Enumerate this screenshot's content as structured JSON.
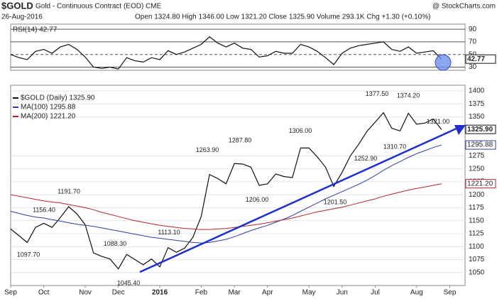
{
  "header": {
    "symbol": "$GOLD",
    "name": "Gold - Continuous Contract (EOD) CME",
    "credit": "@ StockCharts.com",
    "date": "26-Aug-2016",
    "quote": "Open 1324.80 High 1346.00 Low 1321.20 Close 1325.90 Volume 293.1K Chg +1.30 (+0.10%)"
  },
  "chart_data": [
    {
      "type": "line",
      "categories": [
        "Sep",
        null,
        null,
        null,
        "Oct",
        null,
        null,
        null,
        null,
        "Nov",
        null,
        null,
        null,
        "Dec",
        null,
        null,
        null,
        null,
        "2016",
        null,
        null,
        null,
        null,
        "Feb",
        null,
        null,
        null,
        "Mar",
        null,
        null,
        null,
        "Apr",
        null,
        null,
        null,
        null,
        "May",
        null,
        null,
        null,
        "Jun",
        null,
        null,
        null,
        "Jul",
        null,
        null,
        null,
        null,
        "Aug",
        null,
        null,
        null,
        "Sep"
      ],
      "ylim": [
        25,
        98
      ],
      "yticks": [
        90,
        70,
        50,
        30
      ],
      "series": [
        {
          "name": "RSI(14) 42.77",
          "color": "#111",
          "last_label": "42.77",
          "values": [
            50,
            45,
            42,
            55,
            58,
            52,
            62,
            66,
            58,
            46,
            30,
            28,
            30,
            27,
            45,
            40,
            38,
            45,
            42,
            56,
            50,
            54,
            60,
            66,
            78,
            68,
            62,
            68,
            60,
            58,
            46,
            48,
            55,
            52,
            52,
            66,
            62,
            55,
            45,
            34,
            52,
            60,
            64,
            66,
            68,
            70,
            58,
            55,
            62,
            52,
            54,
            56,
            42.77,
            null
          ]
        }
      ]
    },
    {
      "type": "line",
      "ylim": [
        1025,
        1411
      ],
      "yticks": [
        1400,
        1375,
        1350,
        1275,
        1250,
        1225,
        1200,
        1175,
        1150,
        1125,
        1100,
        1075,
        1050
      ],
      "series": [
        {
          "name": "$GOLD (Daily) 1325.90",
          "color": "#111",
          "last_label": "1325.90",
          "values": [
            1134,
            1121,
            1108,
            1137,
            1145,
            1137,
            1156,
            1177,
            1163,
            1142,
            1088,
            1081,
            1076,
            1057,
            1085,
            1075,
            1065,
            1076,
            1061,
            1098,
            1089,
            1097,
            1118,
            1158,
            1239,
            1231,
            1221,
            1260,
            1259,
            1253,
            1218,
            1221,
            1240,
            1235,
            1233,
            1290,
            1290,
            1273,
            1253,
            1216,
            1243,
            1275,
            1297,
            1322,
            1340,
            1358,
            1328,
            1323,
            1357,
            1336,
            1338,
            1346,
            1325.9,
            null
          ]
        },
        {
          "name": "MA(100) 1295.88",
          "color": "#2f3ea8",
          "last_label": "1295.88",
          "values": [
            1168,
            1164,
            1160,
            1157,
            1155,
            1152,
            1149,
            1146,
            1143,
            1141,
            1139,
            1136,
            1133,
            1130,
            1127,
            1124,
            1121,
            1118,
            1116,
            1114,
            1112,
            1110,
            1108,
            1107,
            1108,
            1111,
            1114,
            1119,
            1125,
            1131,
            1136,
            1141,
            1147,
            1153,
            1160,
            1168,
            1176,
            1184,
            1192,
            1199,
            1206,
            1213,
            1220,
            1228,
            1237,
            1247,
            1256,
            1264,
            1272,
            1279,
            1285,
            1291,
            1295.88,
            null
          ]
        },
        {
          "name": "MA(200) 1221.20",
          "color": "#b5262b",
          "last_label": "1221.20",
          "values": [
            1200,
            1197,
            1194,
            1191,
            1188,
            1186,
            1184,
            1181,
            1178,
            1175,
            1171,
            1166,
            1162,
            1158,
            1154,
            1150,
            1147,
            1144,
            1141,
            1139,
            1137,
            1135,
            1134,
            1133,
            1133,
            1134,
            1135,
            1137,
            1139,
            1141,
            1143,
            1146,
            1149,
            1152,
            1155,
            1159,
            1163,
            1167,
            1170,
            1173,
            1176,
            1180,
            1184,
            1188,
            1192,
            1197,
            1201,
            1205,
            1209,
            1212,
            1215,
            1218,
            1221.2,
            null
          ]
        }
      ],
      "annotations": [
        {
          "value": 1097.7,
          "label": "1097.70"
        },
        {
          "value": 1156.4,
          "label": "1156.40"
        },
        {
          "value": 1191.7,
          "label": "1191.70"
        },
        {
          "value": 1088.3,
          "label": "1088.30"
        },
        {
          "value": 1113.1,
          "label": "1113.10"
        },
        {
          "value": 1045.4,
          "label": "1045.40"
        },
        {
          "value": 1263.9,
          "label": "1263.90"
        },
        {
          "value": 1287.8,
          "label": "1287.80"
        },
        {
          "value": 1206,
          "label": "1206.00"
        },
        {
          "value": 1306,
          "label": "1306.00"
        },
        {
          "value": 1201.5,
          "label": "1201.50"
        },
        {
          "value": 1252.9,
          "label": "1252.90"
        },
        {
          "value": 1377.5,
          "label": "1377.50"
        },
        {
          "value": 1374.2,
          "label": "1374.20"
        },
        {
          "value": 1310.7,
          "label": "1310.70"
        },
        {
          "value": 1321,
          "label": "1321.00"
        }
      ]
    }
  ]
}
